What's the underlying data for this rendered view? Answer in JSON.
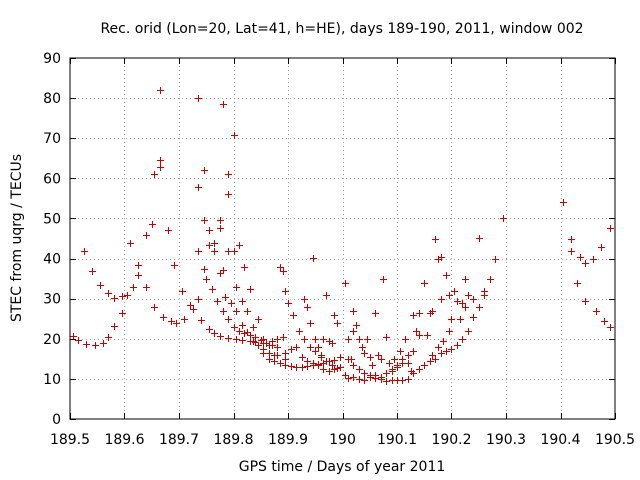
{
  "chart_data": {
    "type": "scatter",
    "title": "Rec. orid (Lon=20, Lat=41, h=HE), days 189-190, 2011, window 002",
    "xlabel": "GPS time / Days of year 2011",
    "ylabel": "STEC from uqrg / TECUs",
    "xlim": [
      189.5,
      190.5
    ],
    "ylim": [
      0,
      90
    ],
    "xticks": [
      189.5,
      189.6,
      189.7,
      189.8,
      189.9,
      190.0,
      190.1,
      190.2,
      190.3,
      190.4,
      190.5
    ],
    "xtick_labels": [
      "189.5",
      "189.6",
      "189.7",
      "189.8",
      "189.9",
      "190",
      "190.1",
      "190.2",
      "190.3",
      "190.4",
      "190.5"
    ],
    "yticks": [
      0,
      10,
      20,
      30,
      40,
      50,
      60,
      70,
      80,
      90
    ],
    "ytick_labels": [
      "0",
      "10",
      "20",
      "30",
      "40",
      "50",
      "60",
      "70",
      "80",
      "90"
    ],
    "grid": true,
    "marker": "+",
    "color": "#cc0000",
    "series": [
      {
        "name": "STEC",
        "points": [
          [
            189.505,
            20.8
          ],
          [
            189.515,
            19.8
          ],
          [
            189.53,
            18.8
          ],
          [
            189.545,
            18.5
          ],
          [
            189.56,
            18.9
          ],
          [
            189.57,
            20.5
          ],
          [
            189.58,
            23.2
          ],
          [
            189.595,
            26.5
          ],
          [
            189.605,
            30.8
          ],
          [
            189.615,
            32.8
          ],
          [
            189.525,
            41.8
          ],
          [
            189.54,
            37.0
          ],
          [
            189.555,
            33.5
          ],
          [
            189.57,
            31.5
          ],
          [
            189.58,
            30.2
          ],
          [
            189.595,
            30.7
          ],
          [
            189.61,
            43.8
          ],
          [
            189.625,
            35.8
          ],
          [
            189.64,
            32.8
          ],
          [
            189.655,
            28.0
          ],
          [
            189.67,
            25.5
          ],
          [
            189.685,
            24.5
          ],
          [
            189.695,
            24.0
          ],
          [
            189.71,
            25.0
          ],
          [
            189.725,
            27.5
          ],
          [
            189.74,
            24.8
          ],
          [
            189.755,
            22.5
          ],
          [
            189.765,
            21.5
          ],
          [
            189.775,
            20.8
          ],
          [
            189.79,
            20.2
          ],
          [
            189.805,
            20.0
          ],
          [
            189.815,
            19.8
          ],
          [
            189.83,
            19.5
          ],
          [
            189.84,
            19.3
          ],
          [
            189.855,
            19.0
          ],
          [
            189.87,
            19.5
          ],
          [
            189.88,
            20.0
          ],
          [
            189.625,
            38.5
          ],
          [
            189.64,
            45.8
          ],
          [
            189.65,
            48.5
          ],
          [
            189.655,
            61.2
          ],
          [
            189.665,
            64.5
          ],
          [
            189.665,
            62.8
          ],
          [
            189.665,
            82.0
          ],
          [
            189.68,
            47.0
          ],
          [
            189.69,
            38.5
          ],
          [
            189.705,
            32.0
          ],
          [
            189.72,
            28.5
          ],
          [
            189.735,
            30.0
          ],
          [
            189.735,
            41.8
          ],
          [
            189.745,
            37.5
          ],
          [
            189.75,
            35.0
          ],
          [
            189.76,
            32.5
          ],
          [
            189.77,
            29.5
          ],
          [
            189.78,
            27.0
          ],
          [
            189.79,
            25.0
          ],
          [
            189.8,
            23.0
          ],
          [
            189.81,
            22.0
          ],
          [
            189.82,
            21.5
          ],
          [
            189.83,
            21.0
          ],
          [
            189.84,
            20.5
          ],
          [
            189.85,
            19.8
          ],
          [
            189.86,
            19.0
          ],
          [
            189.87,
            18.5
          ],
          [
            189.88,
            18.0
          ],
          [
            189.735,
            57.8
          ],
          [
            189.745,
            62.0
          ],
          [
            189.755,
            47.0
          ],
          [
            189.765,
            44.0
          ],
          [
            189.775,
            36.5
          ],
          [
            189.785,
            30.5
          ],
          [
            189.795,
            29.0
          ],
          [
            189.805,
            27.0
          ],
          [
            189.815,
            23.5
          ],
          [
            189.825,
            21.8
          ],
          [
            189.835,
            19.5
          ],
          [
            189.845,
            18.5
          ],
          [
            189.855,
            17.5
          ],
          [
            189.865,
            16.5
          ],
          [
            189.875,
            16.0
          ],
          [
            189.735,
            80.0
          ],
          [
            189.745,
            49.5
          ],
          [
            189.755,
            43.5
          ],
          [
            189.765,
            41.8
          ],
          [
            189.775,
            49.5
          ],
          [
            189.775,
            47.5
          ],
          [
            189.78,
            78.5
          ],
          [
            189.79,
            61.2
          ],
          [
            189.79,
            56.0
          ],
          [
            189.8,
            42.0
          ],
          [
            189.8,
            70.8
          ],
          [
            189.81,
            43.5
          ],
          [
            189.82,
            37.8
          ],
          [
            189.83,
            32.5
          ],
          [
            189.845,
            25.0
          ],
          [
            189.855,
            20.0
          ],
          [
            189.865,
            18.5
          ],
          [
            189.88,
            16.0
          ],
          [
            189.895,
            15.0
          ],
          [
            189.78,
            37.2
          ],
          [
            189.79,
            42.0
          ],
          [
            189.805,
            33.0
          ],
          [
            189.815,
            29.5
          ],
          [
            189.825,
            27.0
          ],
          [
            189.835,
            23.0
          ],
          [
            189.845,
            18.5
          ],
          [
            189.855,
            16.5
          ],
          [
            189.865,
            15.0
          ],
          [
            189.875,
            14.5
          ],
          [
            189.885,
            14.0
          ],
          [
            189.895,
            13.5
          ],
          [
            189.905,
            13.2
          ],
          [
            189.915,
            13.0
          ],
          [
            189.925,
            13.0
          ],
          [
            189.935,
            13.2
          ],
          [
            189.945,
            13.5
          ],
          [
            189.955,
            13.8
          ],
          [
            189.965,
            14.0
          ],
          [
            189.975,
            14.5
          ],
          [
            189.985,
            14.8
          ],
          [
            189.885,
            38.0
          ],
          [
            189.89,
            37.0
          ],
          [
            189.895,
            32.0
          ],
          [
            189.9,
            29.0
          ],
          [
            189.91,
            26.0
          ],
          [
            189.92,
            22.0
          ],
          [
            189.93,
            20.0
          ],
          [
            189.94,
            18.0
          ],
          [
            189.95,
            17.0
          ],
          [
            189.96,
            15.5
          ],
          [
            189.97,
            14.5
          ],
          [
            189.98,
            13.5
          ],
          [
            189.99,
            12.8
          ],
          [
            189.93,
            30.0
          ],
          [
            189.935,
            28.0
          ],
          [
            189.94,
            24.0
          ],
          [
            189.945,
            40.2
          ],
          [
            189.95,
            20.0
          ],
          [
            189.955,
            18.0
          ],
          [
            189.96,
            16.0
          ],
          [
            189.965,
            20.0
          ],
          [
            189.97,
            31.0
          ],
          [
            189.975,
            19.5
          ],
          [
            189.98,
            19.0
          ],
          [
            189.985,
            26.0
          ],
          [
            189.99,
            24.0
          ],
          [
            189.995,
            15.5
          ],
          [
            189.89,
            20.5
          ],
          [
            189.895,
            16.5
          ],
          [
            189.905,
            17.5
          ],
          [
            189.915,
            18.0
          ],
          [
            189.925,
            15.5
          ],
          [
            189.935,
            14.5
          ],
          [
            189.945,
            14.0
          ],
          [
            189.955,
            13.5
          ],
          [
            189.965,
            12.5
          ],
          [
            189.975,
            12.0
          ],
          [
            189.985,
            12.5
          ],
          [
            189.995,
            13.0
          ],
          [
            190.005,
            34.0
          ],
          [
            190.01,
            20.0
          ],
          [
            190.015,
            15.0
          ],
          [
            190.02,
            22.0
          ],
          [
            190.02,
            27.0
          ],
          [
            190.025,
            23.5
          ],
          [
            190.03,
            20.0
          ],
          [
            190.035,
            18.0
          ],
          [
            190.04,
            16.5
          ],
          [
            190.045,
            20.0
          ],
          [
            190.05,
            15.5
          ],
          [
            190.055,
            13.5
          ],
          [
            190.06,
            26.5
          ],
          [
            190.065,
            16.0
          ],
          [
            190.07,
            15.0
          ],
          [
            190.075,
            34.8
          ],
          [
            190.08,
            20.5
          ],
          [
            190.085,
            14.0
          ],
          [
            190.09,
            12.5
          ],
          [
            190.095,
            15.0
          ],
          [
            190.1,
            13.5
          ],
          [
            190.105,
            17.0
          ],
          [
            190.11,
            15.0
          ],
          [
            190.115,
            20.0
          ],
          [
            190.12,
            14.0
          ],
          [
            190.125,
            12.0
          ],
          [
            190.13,
            26.0
          ],
          [
            190.135,
            22.0
          ],
          [
            190.14,
            21.0
          ],
          [
            190.005,
            11.0
          ],
          [
            190.01,
            10.3
          ],
          [
            190.02,
            10.5
          ],
          [
            190.03,
            10.0
          ],
          [
            190.04,
            9.8
          ],
          [
            190.05,
            10.5
          ],
          [
            190.06,
            10.2
          ],
          [
            190.07,
            9.9
          ],
          [
            190.08,
            9.5
          ],
          [
            190.09,
            9.7
          ],
          [
            190.1,
            9.8
          ],
          [
            190.11,
            9.8
          ],
          [
            190.12,
            10.0
          ],
          [
            190.01,
            15.0
          ],
          [
            190.02,
            13.5
          ],
          [
            190.03,
            12.5
          ],
          [
            190.04,
            11.5
          ],
          [
            190.05,
            11.0
          ],
          [
            190.06,
            11.0
          ],
          [
            190.07,
            10.5
          ],
          [
            190.08,
            11.5
          ],
          [
            190.09,
            12.0
          ],
          [
            190.1,
            13.0
          ],
          [
            190.11,
            14.0
          ],
          [
            190.12,
            16.0
          ],
          [
            190.13,
            17.0
          ],
          [
            190.13,
            11.5
          ],
          [
            190.14,
            12.5
          ],
          [
            190.15,
            13.5
          ],
          [
            190.16,
            14.5
          ],
          [
            190.17,
            15.0
          ],
          [
            190.18,
            16.5
          ],
          [
            190.19,
            17.0
          ],
          [
            190.2,
            17.5
          ],
          [
            190.21,
            18.5
          ],
          [
            190.22,
            20.0
          ],
          [
            190.23,
            22.0
          ],
          [
            190.24,
            25.5
          ],
          [
            190.25,
            28.0
          ],
          [
            190.26,
            31.0
          ],
          [
            190.27,
            35.0
          ],
          [
            190.28,
            40.0
          ],
          [
            190.295,
            50.0
          ],
          [
            190.14,
            26.5
          ],
          [
            190.15,
            34.0
          ],
          [
            190.155,
            21.0
          ],
          [
            190.16,
            26.5
          ],
          [
            190.165,
            27.0
          ],
          [
            190.17,
            45.0
          ],
          [
            190.175,
            40.0
          ],
          [
            190.18,
            40.5
          ],
          [
            190.18,
            30.0
          ],
          [
            190.19,
            36.0
          ],
          [
            190.195,
            31.0
          ],
          [
            190.2,
            25.0
          ],
          [
            190.21,
            29.5
          ],
          [
            190.22,
            29.0
          ],
          [
            190.225,
            34.8
          ],
          [
            190.23,
            31.0
          ],
          [
            190.24,
            30.0
          ],
          [
            190.25,
            45.2
          ],
          [
            190.26,
            32.0
          ],
          [
            190.27,
            35.0
          ],
          [
            190.28,
            40.0
          ],
          [
            190.165,
            16.0
          ],
          [
            190.175,
            18.0
          ],
          [
            190.185,
            19.5
          ],
          [
            190.195,
            22.0
          ],
          [
            190.205,
            32.0
          ],
          [
            190.215,
            25.0
          ],
          [
            190.225,
            28.0
          ],
          [
            190.405,
            54.2
          ],
          [
            190.42,
            45.0
          ],
          [
            190.42,
            42.0
          ],
          [
            190.43,
            34.0
          ],
          [
            190.435,
            40.5
          ],
          [
            190.445,
            29.5
          ],
          [
            190.445,
            39.0
          ],
          [
            190.46,
            40.0
          ],
          [
            190.465,
            27.0
          ],
          [
            190.475,
            43.0
          ],
          [
            190.48,
            24.5
          ],
          [
            190.49,
            47.5
          ],
          [
            190.49,
            23.0
          ]
        ]
      }
    ]
  }
}
